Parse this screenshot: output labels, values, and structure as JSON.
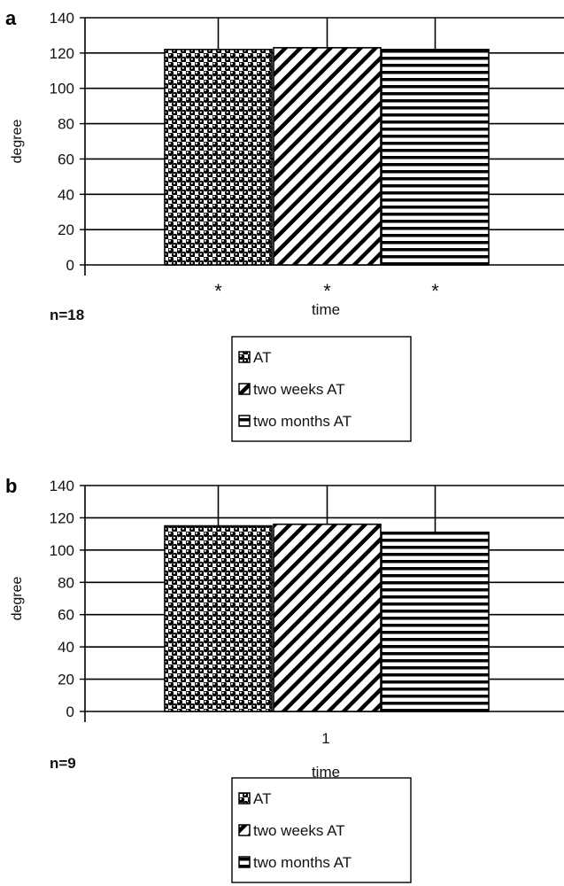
{
  "chart_data": [
    {
      "type": "bar",
      "panel_label": "a",
      "xlabel": "time",
      "ylabel": "degree",
      "ylim": [
        0,
        140
      ],
      "ytick_step": 20,
      "grid": true,
      "x_tick_label": "",
      "annotation_stars": [
        "*",
        "*",
        "*"
      ],
      "sample_size": "n=18",
      "legend_position": "bottom",
      "series": [
        {
          "name": "AT",
          "value": 122,
          "error": 22,
          "pattern": "dots"
        },
        {
          "name": "two weeks AT",
          "value": 123,
          "error": 22,
          "pattern": "diagonal"
        },
        {
          "name": "two months AT",
          "value": 122,
          "error": 22,
          "pattern": "horizontal"
        }
      ]
    },
    {
      "type": "bar",
      "panel_label": "b",
      "xlabel": "time",
      "ylabel": "degree",
      "ylim": [
        0,
        140
      ],
      "ytick_step": 20,
      "grid": true,
      "x_tick_label": "1",
      "annotation_stars": [],
      "sample_size": "n=9",
      "legend_position": "bottom",
      "series": [
        {
          "name": "AT",
          "value": 115,
          "error": 25,
          "pattern": "dots"
        },
        {
          "name": "two weeks AT",
          "value": 116,
          "error": 24,
          "pattern": "diagonal"
        },
        {
          "name": "two months AT",
          "value": 111,
          "error": 29,
          "pattern": "horizontal"
        }
      ]
    }
  ]
}
